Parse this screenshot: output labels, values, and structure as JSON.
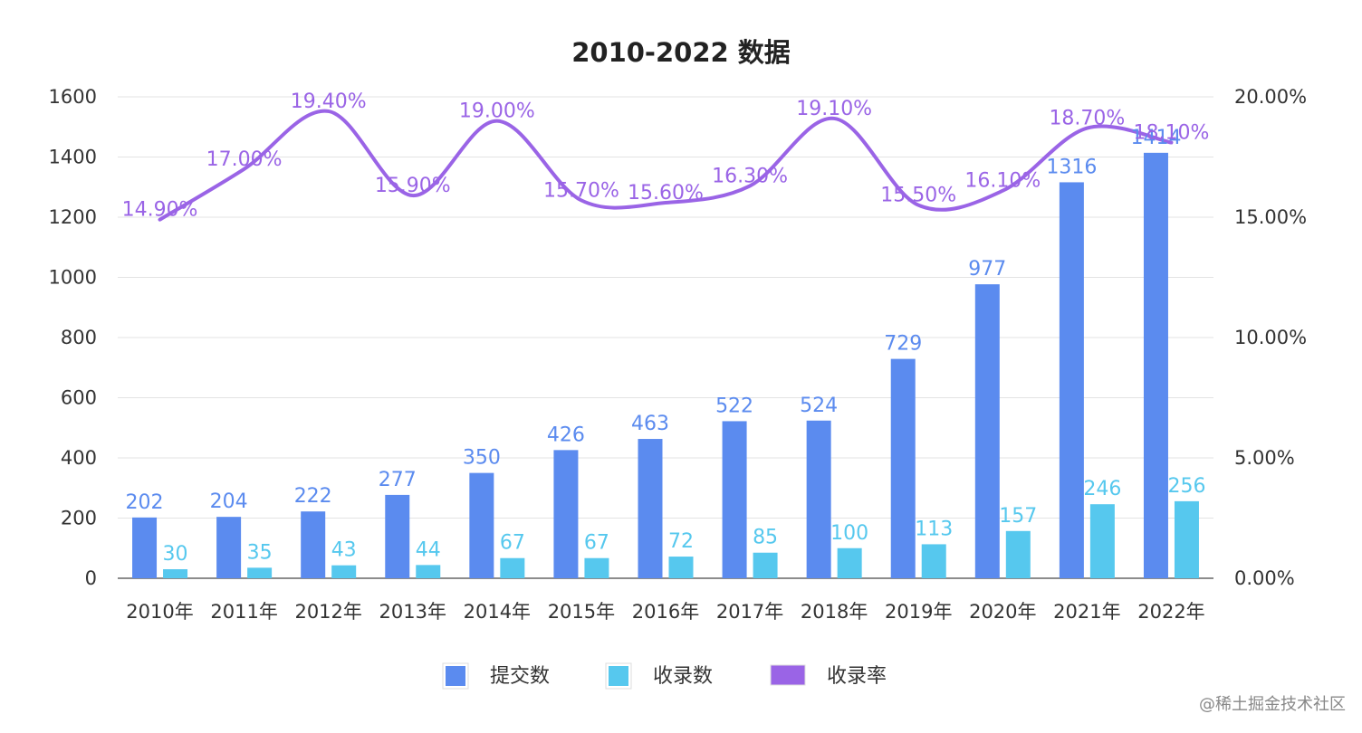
{
  "chart_data": {
    "type": "bar",
    "title": "2010-2022 数据",
    "categories": [
      "2010年",
      "2011年",
      "2012年",
      "2013年",
      "2014年",
      "2015年",
      "2016年",
      "2017年",
      "2018年",
      "2019年",
      "2020年",
      "2021年",
      "2022年"
    ],
    "series": [
      {
        "name": "提交数",
        "type": "bar",
        "axis": "left",
        "color": "#5B8BEF",
        "values": [
          202,
          204,
          222,
          277,
          350,
          426,
          463,
          522,
          524,
          729,
          977,
          1316,
          1414
        ]
      },
      {
        "name": "收录数",
        "type": "bar",
        "axis": "left",
        "color": "#56C8EE",
        "values": [
          30,
          35,
          43,
          44,
          67,
          67,
          72,
          85,
          100,
          113,
          157,
          246,
          256
        ]
      },
      {
        "name": "收录率",
        "type": "line",
        "smooth": true,
        "axis": "right",
        "color": "#9A64E6",
        "values": [
          14.9,
          17.0,
          19.4,
          15.9,
          19.0,
          15.7,
          15.6,
          16.3,
          19.1,
          15.5,
          16.1,
          18.7,
          18.1
        ],
        "labels": [
          "14.90%",
          "17.00%",
          "19.40%",
          "15.90%",
          "19.00%",
          "15.70%",
          "15.60%",
          "16.30%",
          "19.10%",
          "15.50%",
          "16.10%",
          "18.70%",
          "18.10%"
        ]
      }
    ],
    "y_left": {
      "min": 0,
      "max": 1600,
      "ticks": [
        "0",
        "200",
        "400",
        "600",
        "800",
        "1000",
        "1200",
        "1400",
        "1600"
      ]
    },
    "y_right": {
      "min": 0,
      "max": 20,
      "ticks": [
        "0.00%",
        "5.00%",
        "10.00%",
        "15.00%",
        "20.00%"
      ]
    },
    "grid": true,
    "legend_position": "bottom-center"
  },
  "watermark": "@稀土掘金技术社区"
}
